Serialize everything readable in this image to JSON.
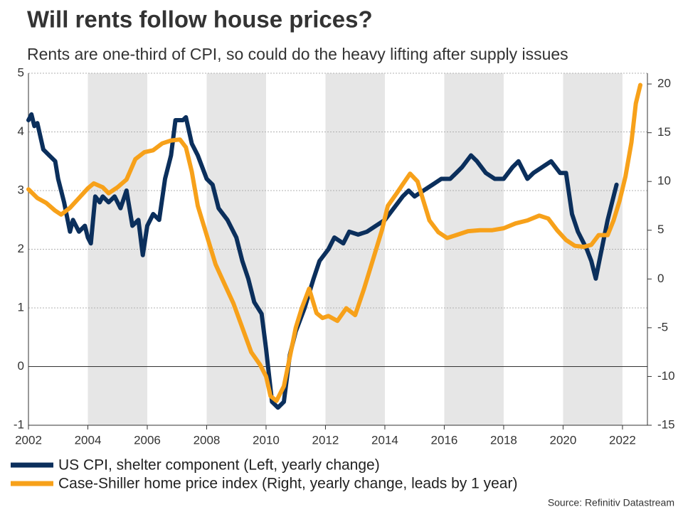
{
  "chart_data": {
    "type": "line",
    "title": "Will rents follow house prices?",
    "subtitle": "Rents are one-third of CPI, so could do the heavy lifting after supply issues",
    "source": "Source: Refinitiv Datastream",
    "xlim": [
      2002,
      2022.84
    ],
    "xticks": [
      2002,
      2004,
      2006,
      2008,
      2010,
      2012,
      2014,
      2016,
      2018,
      2020,
      2022
    ],
    "ylim": [
      -1,
      5
    ],
    "yticks": [
      -1,
      0,
      1,
      2,
      3,
      4,
      5
    ],
    "y2lim": [
      -15,
      21.1
    ],
    "y2ticks": [
      -15,
      -10,
      -5,
      0,
      5,
      10,
      15,
      20
    ],
    "grid": true,
    "series": [
      {
        "name": "US CPI, shelter component (Left, yearly change)",
        "color": "#0b2f5c",
        "axis": "y",
        "x": [
          2002.0,
          2002.1,
          2002.2,
          2002.3,
          2002.5,
          2002.7,
          2002.9,
          2003.0,
          2003.2,
          2003.4,
          2003.5,
          2003.7,
          2003.9,
          2004.0,
          2004.1,
          2004.25,
          2004.4,
          2004.5,
          2004.7,
          2004.9,
          2005.1,
          2005.3,
          2005.5,
          2005.7,
          2005.85,
          2006.0,
          2006.2,
          2006.4,
          2006.6,
          2006.8,
          2006.95,
          2007.2,
          2007.3,
          2007.5,
          2007.7,
          2008.0,
          2008.2,
          2008.4,
          2008.7,
          2009.0,
          2009.2,
          2009.4,
          2009.6,
          2009.85,
          2010.0,
          2010.2,
          2010.4,
          2010.6,
          2010.8,
          2011.0,
          2011.3,
          2011.6,
          2011.8,
          2012.1,
          2012.3,
          2012.6,
          2012.8,
          2013.1,
          2013.4,
          2013.7,
          2014.0,
          2014.3,
          2014.6,
          2014.8,
          2015.0,
          2015.3,
          2015.6,
          2015.9,
          2016.2,
          2016.4,
          2016.6,
          2016.9,
          2017.1,
          2017.4,
          2017.7,
          2018.0,
          2018.3,
          2018.5,
          2018.8,
          2019.0,
          2019.3,
          2019.6,
          2019.9,
          2020.1,
          2020.3,
          2020.5,
          2020.8,
          2020.95,
          2021.1,
          2021.3,
          2021.5,
          2021.7,
          2021.8
        ],
        "values": [
          4.2,
          4.3,
          4.1,
          4.15,
          3.7,
          3.6,
          3.5,
          3.2,
          2.8,
          2.3,
          2.5,
          2.3,
          2.4,
          2.2,
          2.1,
          2.9,
          2.8,
          2.9,
          2.8,
          2.9,
          2.7,
          3.0,
          2.4,
          2.5,
          1.9,
          2.4,
          2.6,
          2.5,
          3.2,
          3.6,
          4.2,
          4.2,
          4.25,
          3.8,
          3.6,
          3.2,
          3.1,
          2.7,
          2.5,
          2.2,
          1.8,
          1.5,
          1.1,
          0.9,
          0.3,
          -0.6,
          -0.7,
          -0.6,
          0.2,
          0.6,
          1.0,
          1.5,
          1.8,
          2.0,
          2.2,
          2.1,
          2.3,
          2.25,
          2.3,
          2.4,
          2.5,
          2.7,
          2.9,
          3.0,
          2.9,
          3.0,
          3.1,
          3.2,
          3.2,
          3.3,
          3.4,
          3.6,
          3.5,
          3.3,
          3.2,
          3.2,
          3.4,
          3.5,
          3.2,
          3.3,
          3.4,
          3.5,
          3.3,
          3.3,
          2.6,
          2.3,
          2.0,
          1.8,
          1.5,
          2.0,
          2.5,
          2.9,
          3.1
        ]
      },
      {
        "name": "Case-Shiller home price index (Right, yearly change, leads by 1 year)",
        "color": "#f7a11a",
        "axis": "y2",
        "x": [
          2002.0,
          2002.3,
          2002.6,
          2002.9,
          2003.1,
          2003.4,
          2003.7,
          2004.0,
          2004.2,
          2004.5,
          2004.7,
          2005.0,
          2005.3,
          2005.6,
          2005.9,
          2006.2,
          2006.5,
          2006.8,
          2007.1,
          2007.3,
          2007.5,
          2007.7,
          2008.0,
          2008.3,
          2008.6,
          2008.9,
          2009.2,
          2009.5,
          2009.8,
          2010.0,
          2010.15,
          2010.35,
          2010.6,
          2010.8,
          2011.0,
          2011.2,
          2011.45,
          2011.7,
          2011.9,
          2012.1,
          2012.4,
          2012.7,
          2013.0,
          2013.3,
          2013.6,
          2013.9,
          2014.1,
          2014.4,
          2014.6,
          2014.85,
          2015.1,
          2015.3,
          2015.5,
          2015.8,
          2016.1,
          2016.4,
          2016.8,
          2017.2,
          2017.6,
          2018.0,
          2018.4,
          2018.8,
          2019.2,
          2019.5,
          2019.8,
          2020.1,
          2020.4,
          2020.7,
          2020.95,
          2021.2,
          2021.5,
          2021.7,
          2021.9,
          2022.1,
          2022.3,
          2022.45,
          2022.6
        ],
        "values": [
          9.2,
          8.3,
          7.8,
          7.0,
          6.6,
          7.3,
          8.3,
          9.3,
          9.8,
          9.4,
          8.8,
          9.4,
          10.2,
          12.3,
          13.0,
          13.2,
          13.9,
          14.2,
          14.3,
          13.5,
          11.0,
          7.5,
          4.5,
          1.5,
          -0.5,
          -2.5,
          -5,
          -7.5,
          -8.8,
          -10,
          -12,
          -12.5,
          -11,
          -8,
          -5,
          -3,
          -1.0,
          -3.5,
          -4.0,
          -3.8,
          -4.3,
          -3.0,
          -3.7,
          -1,
          2.0,
          5.0,
          7.5,
          8.8,
          9.7,
          10.8,
          10.0,
          8,
          6,
          4.8,
          4.2,
          4.5,
          4.9,
          5.0,
          5.0,
          5.2,
          5.7,
          6.0,
          6.5,
          6.2,
          5.0,
          4.0,
          3.4,
          3.3,
          3.5,
          4.5,
          4.5,
          6.0,
          8.0,
          10.5,
          14.0,
          18.0,
          19.9
        ]
      }
    ]
  }
}
